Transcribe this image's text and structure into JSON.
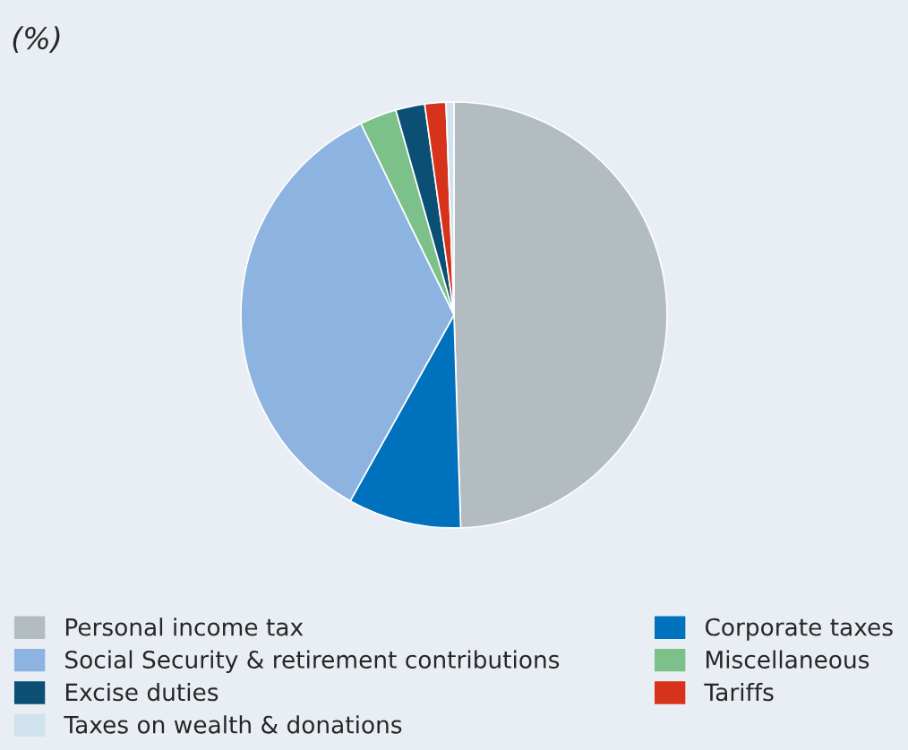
{
  "chart_data": {
    "type": "pie",
    "title": "(%)",
    "categories": [
      "Personal income tax",
      "Corporate taxes",
      "Social Security & retirement contributions",
      "Miscellaneous",
      "Excise duties",
      "Tariffs",
      "Taxes on wealth & donations"
    ],
    "values": [
      49.5,
      8.6,
      34.7,
      2.8,
      2.2,
      1.6,
      0.6
    ],
    "colors": [
      "#b3bcc1",
      "#0071bc",
      "#8db3e0",
      "#7cc08a",
      "#0b4f75",
      "#d6321c",
      "#d0e2ee"
    ],
    "legend": "bottom"
  }
}
